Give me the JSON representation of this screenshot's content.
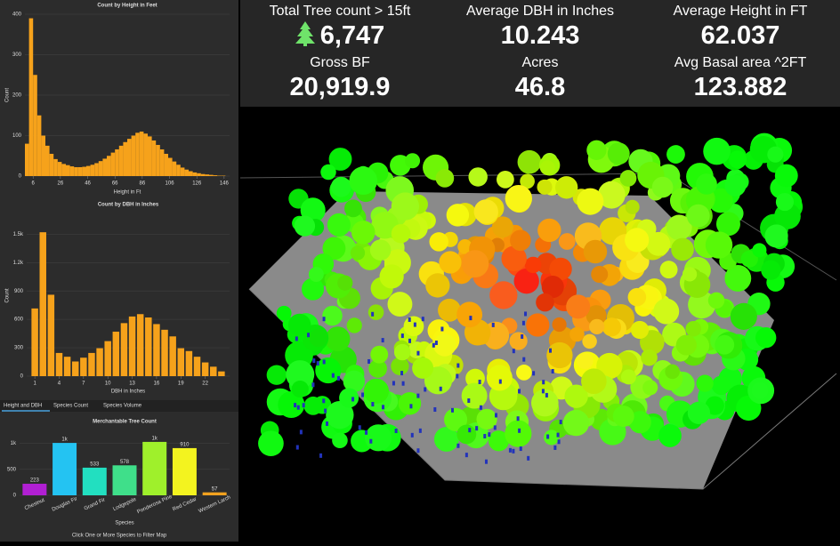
{
  "chart_data": [
    {
      "type": "histogram",
      "title": "Count by Height in Feet",
      "x_label": "Height in Ft",
      "y_label": "Count",
      "color": "#f6a21b",
      "bins": [
        0,
        3,
        6,
        9,
        12,
        15,
        18,
        21,
        24,
        27,
        30,
        33,
        36,
        39,
        42,
        45,
        48,
        51,
        54,
        57,
        60,
        63,
        66,
        69,
        72,
        75,
        78,
        81,
        84,
        87,
        90,
        93,
        96,
        99,
        102,
        105,
        108,
        111,
        114,
        117,
        120,
        123,
        126,
        129,
        132,
        135,
        138,
        141,
        144,
        147,
        150
      ],
      "values": [
        80,
        390,
        250,
        150,
        100,
        75,
        55,
        42,
        35,
        30,
        27,
        24,
        22,
        22,
        23,
        25,
        28,
        32,
        37,
        43,
        50,
        58,
        66,
        75,
        84,
        92,
        100,
        107,
        110,
        105,
        98,
        88,
        77,
        66,
        55,
        45,
        36,
        28,
        21,
        16,
        12,
        9,
        7,
        5,
        4,
        3,
        2,
        1,
        1,
        0
      ],
      "xlim": [
        0,
        150
      ],
      "xticks": [
        6,
        26,
        46,
        66,
        86,
        106,
        126,
        146
      ],
      "ylim": [
        0,
        400
      ],
      "yticks": [
        0,
        100,
        200,
        300,
        400
      ]
    },
    {
      "type": "bar",
      "title": "Count by DBH in Inches",
      "x_label": "DBH in Inches",
      "y_label": "Count",
      "color": "#f6a21b",
      "x": [
        1,
        2,
        3,
        4,
        5,
        6,
        7,
        8,
        9,
        10,
        11,
        12,
        13,
        14,
        15,
        16,
        17,
        18,
        19,
        20,
        21,
        22,
        23,
        24
      ],
      "values": [
        715,
        1520,
        860,
        245,
        205,
        155,
        195,
        245,
        295,
        370,
        470,
        560,
        630,
        655,
        620,
        550,
        490,
        420,
        295,
        265,
        205,
        145,
        100,
        50
      ],
      "xlim": [
        0,
        25
      ],
      "xticks": [
        1,
        4,
        7,
        10,
        13,
        16,
        19,
        22
      ],
      "ylim": [
        0,
        1700
      ],
      "yticks": [
        0,
        300,
        600,
        900,
        {
          "value": 1200,
          "label": "1.2k"
        },
        {
          "value": 1500,
          "label": "1.5k"
        }
      ]
    },
    {
      "type": "bar",
      "title": "Merchantable Tree Count",
      "x_label": "Species",
      "categories": [
        "Chestnut",
        "Douglas Fir",
        "Grand Fir",
        "Lodgepole",
        "Ponderosa Pine",
        "Red Cedar",
        "Western Larch"
      ],
      "values": [
        223,
        1010,
        533,
        578,
        1030,
        910,
        57
      ],
      "value_labels": [
        "223",
        "1k",
        "533",
        "578",
        "1k",
        "910",
        "57"
      ],
      "colors": [
        "#b11fd3",
        "#24c3f2",
        "#22dfc0",
        "#3fdf8a",
        "#9ff02b",
        "#f3f31f",
        "#f1a21f"
      ],
      "ylim": [
        0,
        1200
      ],
      "yticks": [
        0,
        500,
        {
          "value": 1000,
          "label": "1k"
        }
      ]
    }
  ],
  "tabs": [
    "Height and DBH",
    "Species Count",
    "Species Volume"
  ],
  "footer": "Click One or More Species to Filter Map",
  "kpis": [
    {
      "label": "Total Tree count > 15ft",
      "value": "6,747"
    },
    {
      "label": "Average DBH in Inches",
      "value": "10.243"
    },
    {
      "label": "Average Height in FT",
      "value": "62.037"
    },
    {
      "label": "Gross BF",
      "value": "20,919.9"
    },
    {
      "label": "Acres",
      "value": "46.8"
    },
    {
      "label": "Avg Basal area ^2FT",
      "value": "123.882"
    }
  ]
}
